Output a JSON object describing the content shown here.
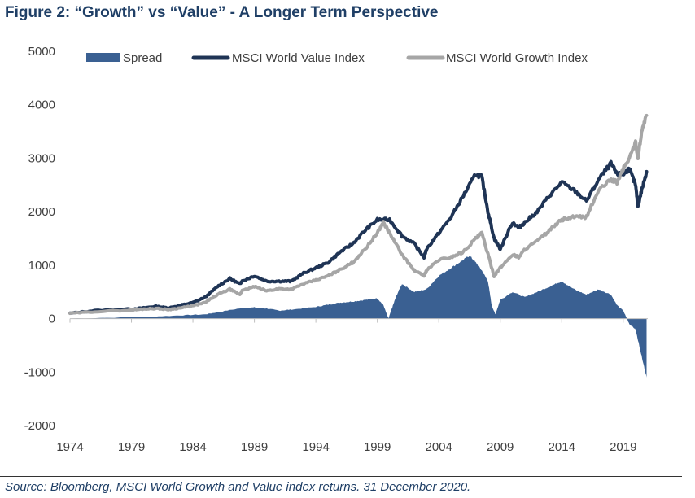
{
  "title": "Figure 2: “Growth” vs “Value” - A Longer Term Perspective",
  "source": "Source: Bloomberg, MSCI World Growth and Value index returns. 31 December 2020.",
  "colors": {
    "spread": "#3a6092",
    "value": "#1f3455",
    "growth": "#a6a6a6",
    "title": "#1f3f66"
  },
  "chart_data": {
    "type": "line",
    "xlim": [
      1974,
      2021
    ],
    "ylim": [
      -2000,
      5000
    ],
    "y_ticks": [
      "5000",
      "4000",
      "3000",
      "2000",
      "1000",
      "0",
      "-1000",
      "-2000"
    ],
    "x_ticks": [
      "1974",
      "1979",
      "1984",
      "1989",
      "1994",
      "1999",
      "2004",
      "2009",
      "2014",
      "2019"
    ],
    "grid": false,
    "legend_position": "top",
    "series": [
      {
        "name": "Spread",
        "kind": "area",
        "x": [
          1974,
          1980,
          1983,
          1985,
          1986,
          1988,
          1989,
          1990,
          1991,
          1992,
          1994,
          1995,
          1996,
          1997,
          1998,
          1999,
          1999.5,
          1999.9,
          2000.2,
          2000.5,
          2001,
          2002,
          2003,
          2004,
          2005,
          2006,
          2006.5,
          2007,
          2007.5,
          2008,
          2008.3,
          2008.6,
          2009,
          2010,
          2011,
          2012,
          2013,
          2014,
          2015,
          2016,
          2017,
          2018,
          2018.5,
          2019,
          2019.5,
          2020,
          2020.3,
          2020.7,
          2020.9
        ],
        "y": [
          0,
          30,
          60,
          80,
          120,
          200,
          210,
          190,
          150,
          170,
          220,
          260,
          300,
          320,
          350,
          380,
          250,
          0,
          200,
          400,
          650,
          500,
          550,
          800,
          950,
          1100,
          1180,
          1050,
          900,
          700,
          250,
          80,
          350,
          500,
          400,
          500,
          600,
          700,
          550,
          450,
          550,
          450,
          250,
          150,
          -100,
          -200,
          -500,
          -900,
          -1100
        ]
      },
      {
        "name": "MSCI World Value Index",
        "kind": "line",
        "x": [
          1974,
          1976,
          1979,
          1980,
          1981,
          1982,
          1983,
          1984,
          1985,
          1986,
          1987,
          1987.8,
          1988,
          1989,
          1990,
          1991,
          1992,
          1993,
          1994,
          1995,
          1996,
          1997,
          1998,
          1999,
          2000,
          2001,
          2002,
          2002.8,
          2003,
          2004,
          2005,
          2006,
          2007,
          2007.5,
          2008,
          2008.5,
          2009,
          2010,
          2010.5,
          2011,
          2012,
          2013,
          2014,
          2015,
          2016,
          2017,
          2018,
          2018.5,
          2019,
          2019.5,
          2020,
          2020.2,
          2020.5,
          2020.9
        ],
        "y": [
          100,
          150,
          180,
          200,
          230,
          200,
          250,
          300,
          400,
          600,
          750,
          650,
          700,
          800,
          700,
          700,
          700,
          850,
          950,
          1050,
          1250,
          1400,
          1650,
          1850,
          1850,
          1550,
          1400,
          1150,
          1300,
          1600,
          1900,
          2300,
          2700,
          2650,
          2000,
          1500,
          1300,
          1800,
          1700,
          1800,
          2000,
          2300,
          2550,
          2400,
          2200,
          2600,
          2900,
          2700,
          2700,
          2800,
          2500,
          2100,
          2400,
          2750
        ]
      },
      {
        "name": "MSCI World Growth Index",
        "kind": "line",
        "x": [
          1974,
          1976,
          1979,
          1980,
          1981,
          1982,
          1983,
          1984,
          1985,
          1986,
          1987,
          1987.8,
          1988,
          1989,
          1990,
          1991,
          1992,
          1993,
          1994,
          1995,
          1996,
          1997,
          1998,
          1999,
          1999.5,
          2000,
          2001,
          2002,
          2002.8,
          2003,
          2004,
          2005,
          2006,
          2007,
          2007.5,
          2008,
          2008.5,
          2009,
          2010,
          2010.5,
          2011,
          2012,
          2013,
          2014,
          2015,
          2016,
          2017,
          2018,
          2018.5,
          2019,
          2019.5,
          2020,
          2020.2,
          2020.5,
          2020.9
        ],
        "y": [
          100,
          130,
          160,
          180,
          190,
          170,
          200,
          240,
          300,
          450,
          550,
          450,
          520,
          600,
          520,
          560,
          550,
          650,
          720,
          800,
          920,
          1050,
          1300,
          1600,
          1800,
          1600,
          1200,
          900,
          800,
          900,
          1100,
          1150,
          1250,
          1500,
          1600,
          1200,
          800,
          950,
          1200,
          1150,
          1300,
          1450,
          1650,
          1850,
          1900,
          1900,
          2400,
          2600,
          2550,
          2800,
          3000,
          3300,
          3000,
          3500,
          3800
        ]
      }
    ]
  }
}
